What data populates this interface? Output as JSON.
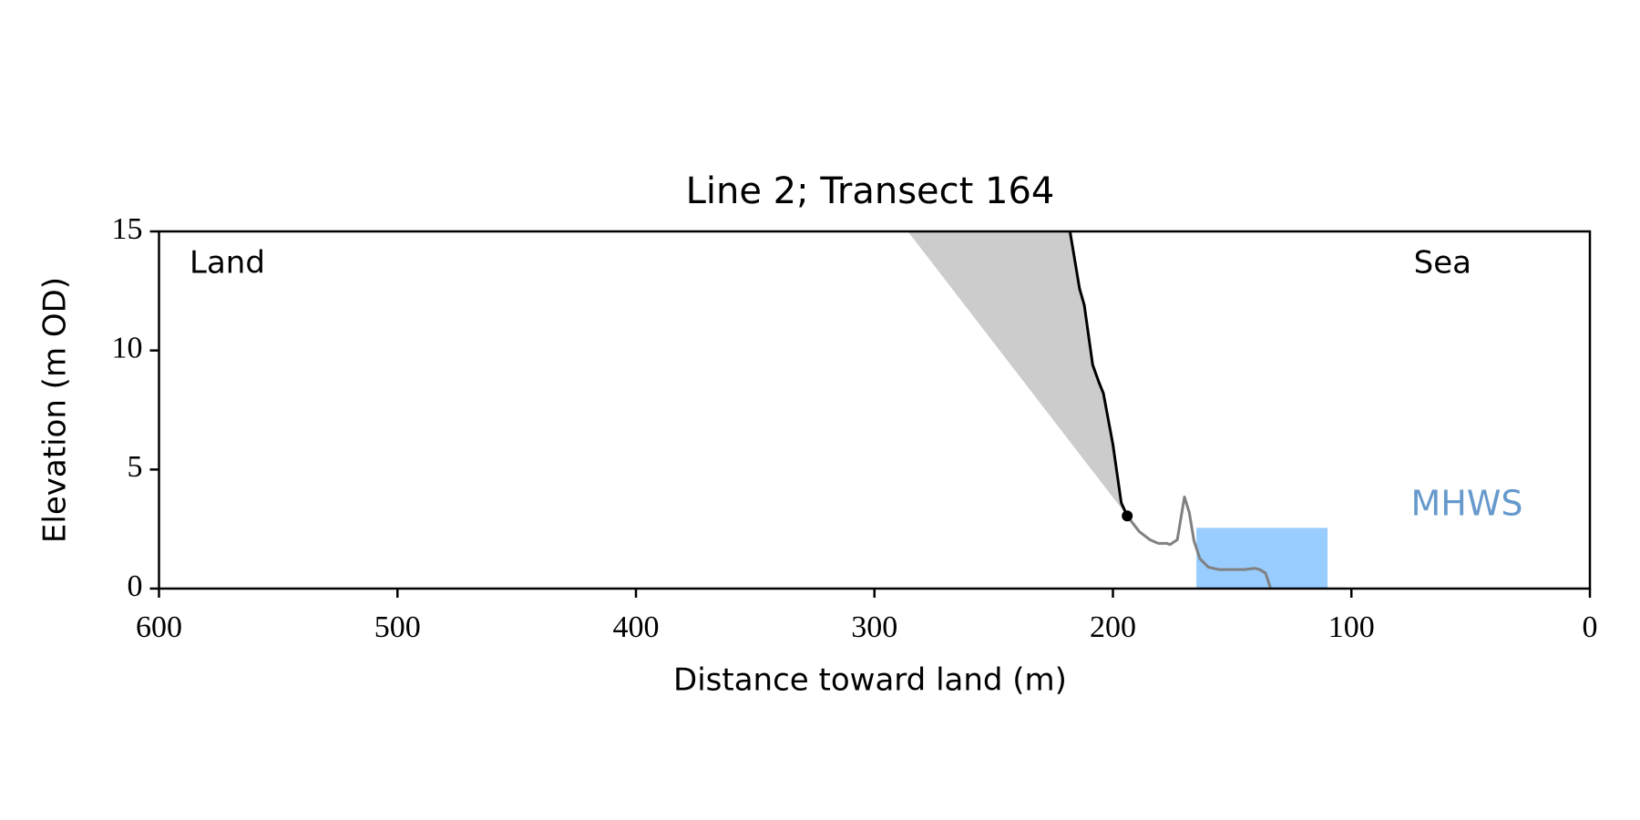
{
  "chart_data": {
    "type": "line",
    "title": "Line 2; Transect 164",
    "xlabel": "Distance toward land (m)",
    "ylabel": "Elevation (m OD)",
    "xlim": [
      600,
      0
    ],
    "ylim": [
      0,
      15
    ],
    "xticks": [
      600,
      500,
      400,
      300,
      200,
      100,
      0
    ],
    "yticks": [
      0,
      5,
      10,
      15
    ],
    "series": [
      {
        "color": "#000000",
        "x": [
          218,
          214,
          212,
          208.5,
          206,
          204,
          200,
          196.5,
          194
        ],
        "values": [
          15,
          12.6,
          11.9,
          9.4,
          8.7,
          8.2,
          6.05,
          3.6,
          3.05
        ]
      },
      {
        "color": "#808080",
        "x": [
          194,
          189,
          184.5,
          181,
          177.5,
          176,
          173,
          170,
          168,
          166,
          163.5,
          160,
          155.7,
          149,
          145,
          140.5,
          138.5,
          136,
          134
        ],
        "values": [
          3.05,
          2.4,
          2.05,
          1.9,
          1.9,
          1.85,
          2.05,
          3.85,
          3.2,
          2.0,
          1.25,
          0.9,
          0.8,
          0.8,
          0.8,
          0.85,
          0.8,
          0.65,
          0.05
        ]
      }
    ],
    "marker": {
      "x": 194,
      "y": 3.05,
      "color": "#000000"
    },
    "shade": {
      "color": "#cccccc",
      "x": [
        286,
        194
      ],
      "y": [
        15,
        3.05
      ]
    },
    "mhws": {
      "label": "MHWS",
      "color": "#99ccff",
      "label_color": "#6699cc",
      "xlim": [
        165,
        110
      ],
      "level": 2.55
    },
    "annotations": [
      "Land",
      "Sea"
    ]
  }
}
